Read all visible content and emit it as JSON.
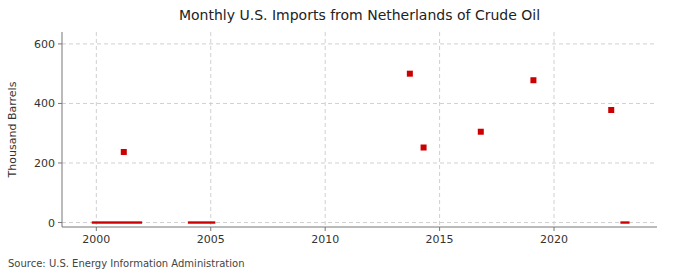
{
  "chart_data": {
    "type": "scatter",
    "title": "Monthly U.S. Imports from Netherlands of Crude Oil",
    "ylabel": "Thousand Barrels",
    "source": "Source: U.S. Energy Information Administration",
    "series": [
      {
        "type": "scatter",
        "color": "#cc0000",
        "marker": "square",
        "x": [
          2001.2,
          2013.7,
          2014.3,
          2016.8,
          2019.1,
          2022.5
        ],
        "values": [
          237,
          500,
          252,
          305,
          478,
          378
        ]
      },
      {
        "type": "span",
        "color": "#cc0000",
        "x_start": [
          1999.8,
          2004.0,
          2022.9
        ],
        "x_end": [
          2002.0,
          2005.2,
          2023.3
        ],
        "y_low": -4,
        "y_high": 4
      }
    ],
    "xlim": [
      1998.5,
      2024.5
    ],
    "ylim": [
      -15,
      640
    ],
    "xticks": [
      2000,
      2005,
      2010,
      2015,
      2020
    ],
    "yticks": [
      0,
      200,
      400,
      600
    ],
    "grid": true
  }
}
